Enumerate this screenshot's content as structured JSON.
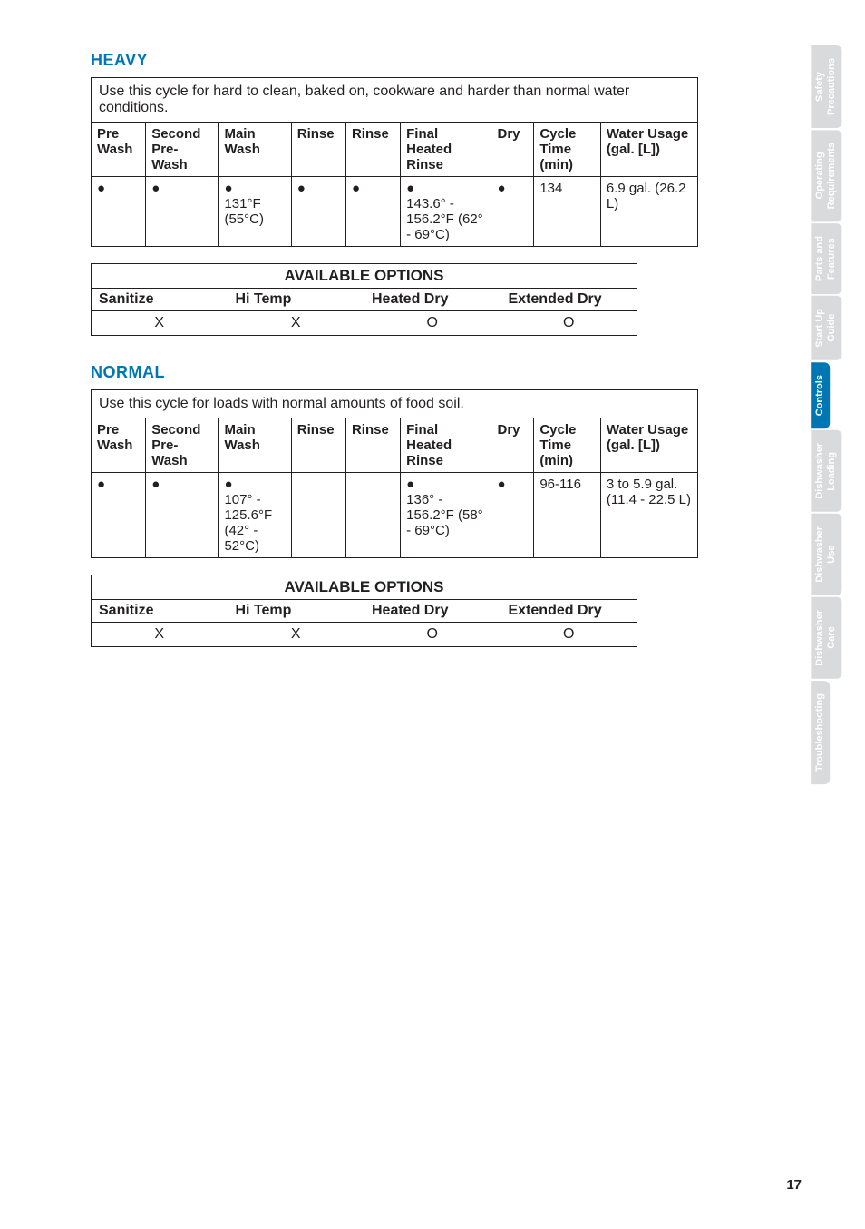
{
  "page_number": "17",
  "sections": [
    {
      "title": "HEAVY",
      "description": "Use this cycle for hard to clean, baked on, cookware and harder than normal water conditions.",
      "cycle_headers": [
        "Pre Wash",
        "Second Pre-Wash",
        "Main Wash",
        "Rinse",
        "Rinse",
        "Final Heated Rinse",
        "Dry",
        "Cycle Time (min)",
        "Water Usage (gal. [L])"
      ],
      "cycle_row": [
        "●",
        "●",
        "●\n131°F (55°C)",
        "●",
        "●",
        "●\n143.6° - 156.2°F (62° - 69°C)",
        "●",
        "134",
        "6.9 gal. (26.2 L)"
      ],
      "options_title": "AVAILABLE OPTIONS",
      "options_headers": [
        "Sanitize",
        "Hi Temp",
        "Heated Dry",
        "Extended Dry"
      ],
      "options_marks": [
        "X",
        "X",
        "O",
        "O"
      ]
    },
    {
      "title": "NORMAL",
      "description": "Use this cycle for loads with normal amounts of food soil.",
      "cycle_headers": [
        "Pre Wash",
        "Second Pre-Wash",
        "Main Wash",
        "Rinse",
        "Rinse",
        "Final Heated Rinse",
        "Dry",
        "Cycle Time (min)",
        "Water Usage (gal. [L])"
      ],
      "cycle_row": [
        "●",
        "●",
        "●\n107° - 125.6°F (42° - 52°C)",
        "",
        "",
        "●\n136° - 156.2°F (58° - 69°C)",
        "●",
        "96-116",
        "3 to 5.9 gal. (11.4 - 22.5 L)"
      ],
      "options_title": "AVAILABLE OPTIONS",
      "options_headers": [
        "Sanitize",
        "Hi Temp",
        "Heated Dry",
        "Extended Dry"
      ],
      "options_marks": [
        "X",
        "X",
        "O",
        "O"
      ]
    }
  ],
  "sidetabs": [
    {
      "label": "Safety\nPrecautions",
      "active": false
    },
    {
      "label": "Operating\nRequirements",
      "active": false
    },
    {
      "label": "Parts and\nFeatures",
      "active": false
    },
    {
      "label": "Start Up\nGuide",
      "active": false
    },
    {
      "label": "Controls",
      "active": true
    },
    {
      "label": "Dishwasher\nLoading",
      "active": false
    },
    {
      "label": "Dishwasher\nUse",
      "active": false
    },
    {
      "label": "Dishwasher\nCare",
      "active": false
    },
    {
      "label": "Troubleshooting",
      "active": false
    }
  ],
  "col_widths": [
    "9%",
    "12%",
    "12%",
    "9%",
    "9%",
    "15%",
    "7%",
    "11%",
    "16%"
  ]
}
